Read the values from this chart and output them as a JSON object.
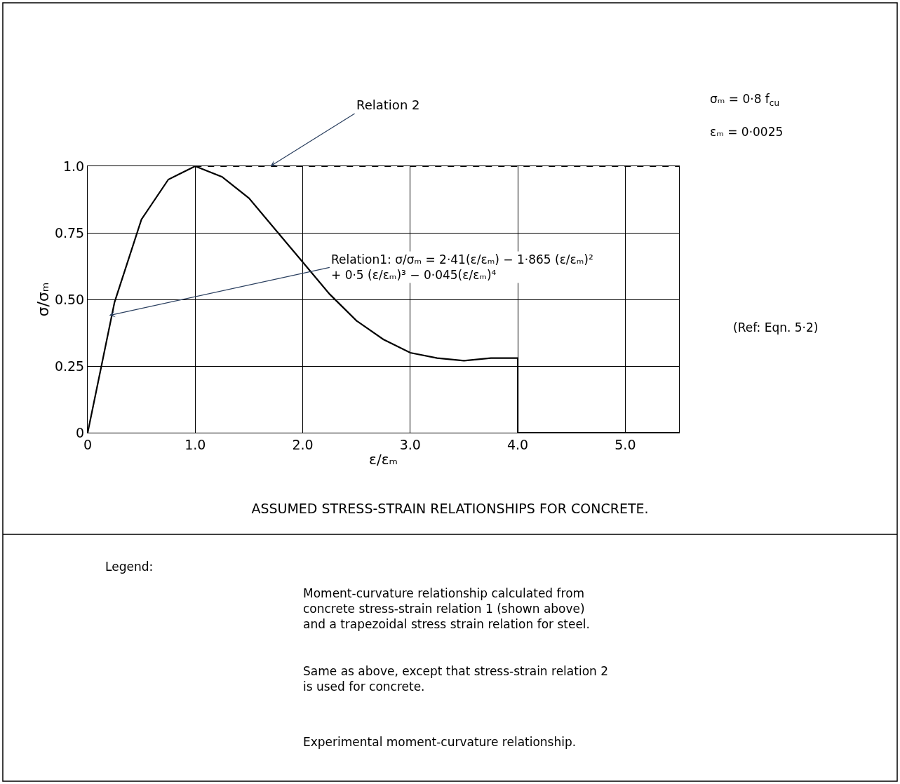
{
  "chart_data": {
    "type": "line",
    "title": "ASSUMED STRESS-STRAIN RELATIONSHIPS FOR CONCRETE.",
    "xlabel": "ε/εₘ",
    "ylabel": "σ/σₘ",
    "series": [
      {
        "color": "#000000",
        "line_style": "solid",
        "x": [
          0,
          0.25,
          0.5,
          0.75,
          1,
          1.25,
          1.5,
          1.75,
          2,
          2.25,
          2.5,
          2.75,
          3,
          3.25,
          3.5,
          3.75,
          4,
          4,
          5.5
        ],
        "values": [
          0,
          0.49,
          0.8,
          0.95,
          1.0,
          0.96,
          0.88,
          0.76,
          0.64,
          0.52,
          0.42,
          0.35,
          0.3,
          0.28,
          0.27,
          0.28,
          0.28,
          0,
          0
        ]
      },
      {
        "color": "#000000",
        "line_style": "dashed",
        "x": [
          1,
          5.5
        ],
        "values": [
          1.0,
          1.0
        ]
      }
    ],
    "xlim": [
      0,
      5.5
    ],
    "ylim": [
      0,
      1.0
    ],
    "xticks": [
      0,
      {
        "value": 1,
        "label": "1.0"
      },
      {
        "value": 2,
        "label": "2.0"
      },
      {
        "value": 3,
        "label": "3.0"
      },
      {
        "value": 4,
        "label": "4.0"
      },
      {
        "value": 5,
        "label": "5.0"
      }
    ],
    "yticks": [
      0,
      0.25,
      {
        "value": 0.5,
        "label": "0.50"
      },
      0.75,
      {
        "value": 1.0,
        "label": "1.0"
      }
    ],
    "grid": true,
    "marker": "none",
    "annotations": [
      {
        "text": "Relation 2",
        "x": 1.7,
        "y": 1.0
      },
      {
        "text": "Relation1: σ/σₘ = 2·41(ε/εₘ) − 1·865 (ε/εₘ)²\n+ 0·5 (ε/εₘ)³ − 0·045(ε/εₘ)⁴",
        "x": 0.2,
        "y": 0.44
      },
      "σₘ = 0·8 f$_{cu}$",
      "εₘ = 0·0025",
      "(Ref: Eqn. 5·2)",
      "Legend:",
      "Moment-curvature relationship calculated from\nconcrete stress-strain relation 1 (shown above)\nand a trapezoidal stress strain relation for steel.",
      "Same as above, except that stress-strain relation 2\nis used for concrete.",
      "Experimental moment-curvature relationship."
    ]
  }
}
